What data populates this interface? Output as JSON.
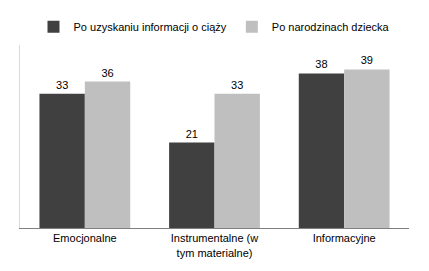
{
  "chart_data": {
    "type": "bar",
    "categories": [
      "Emocjonalne",
      "Instrumentalne (w tym materialne)",
      "Informacyjne"
    ],
    "series": [
      {
        "name": "Po uzyskaniu informacji o ciąży",
        "color": "#404040",
        "values": [
          33,
          21,
          38
        ]
      },
      {
        "name": "Po narodzinach dziecka",
        "color": "#bfbfbf",
        "values": [
          36,
          33,
          39
        ]
      }
    ],
    "ylim": [
      0,
      45
    ],
    "grid": false,
    "legend": "top",
    "data_labels": true,
    "tick_labels": "x"
  }
}
